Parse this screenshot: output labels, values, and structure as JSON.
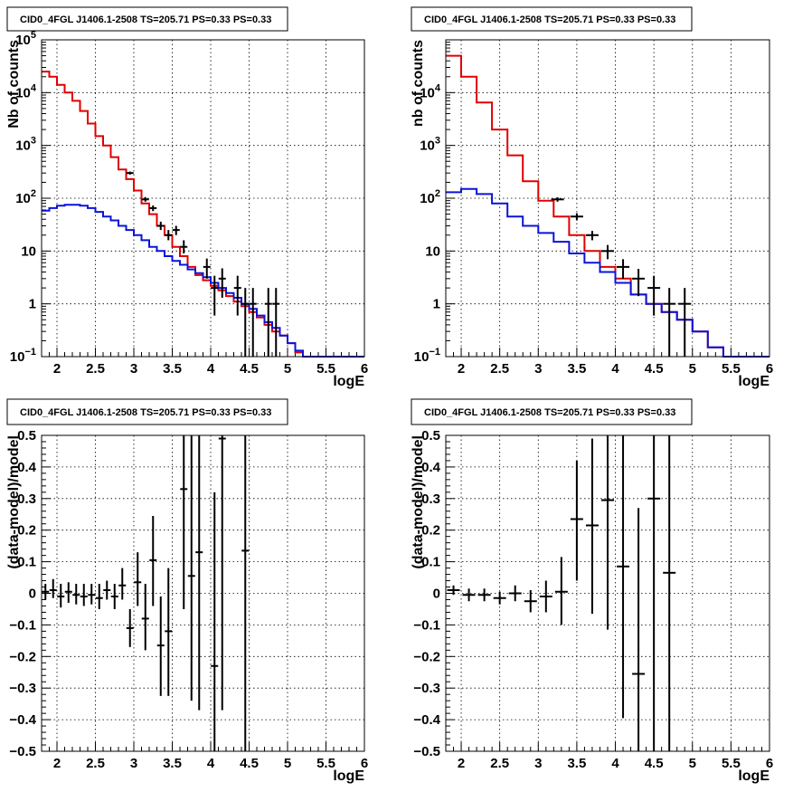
{
  "colors": {
    "data": "#000000",
    "total": "#e00000",
    "background": "#0a14d8",
    "grid": "#000000"
  },
  "chart_data": [
    {
      "type": "histogram",
      "title": "CID0_4FGL J1406.1-2508 TS=205.71 PS=0.33 PS=0.33",
      "xlabel": "logE",
      "ylabel": "Nb of counts",
      "xlim": [
        1.8,
        6.0
      ],
      "ylim": [
        0.1,
        100000
      ],
      "yscale": "log",
      "grid": true,
      "xticks": [
        "2",
        "2.5",
        "3",
        "3.5",
        "4",
        "4.5",
        "5",
        "5.5",
        "6"
      ],
      "yticks": [
        {
          "v": 0.1,
          "base": "10",
          "exp": "−1"
        },
        {
          "v": 1,
          "label": "1"
        },
        {
          "v": 10,
          "label": "10"
        },
        {
          "v": 100,
          "base": "10",
          "exp": "2"
        },
        {
          "v": 1000,
          "base": "10",
          "exp": "3"
        },
        {
          "v": 10000,
          "base": "10",
          "exp": "4"
        },
        {
          "v": 100000,
          "base": "10",
          "exp": "5"
        }
      ],
      "bin_edges": [
        1.8,
        1.9,
        2.0,
        2.1,
        2.2,
        2.3,
        2.4,
        2.5,
        2.6,
        2.7,
        2.8,
        2.9,
        3.0,
        3.1,
        3.2,
        3.3,
        3.4,
        3.5,
        3.6,
        3.7,
        3.8,
        3.9,
        4.0,
        4.1,
        4.2,
        4.3,
        4.4,
        4.5,
        4.6,
        4.7,
        4.8,
        4.9,
        5.0,
        5.1,
        5.2,
        5.3,
        5.4,
        5.5,
        5.6,
        5.7,
        5.8,
        5.9,
        6.0
      ],
      "series": [
        {
          "role": "total",
          "values": [
            25000,
            20000,
            14000,
            10000,
            7000,
            4500,
            2600,
            1500,
            1000,
            600,
            350,
            230,
            140,
            80,
            50,
            30,
            20,
            12,
            8,
            5,
            3.5,
            2.8,
            2.2,
            1.8,
            1.4,
            1.1,
            0.9,
            0.7,
            0.55,
            0.4,
            0.3,
            0.25,
            0.18,
            0.12,
            0.08,
            0.1,
            0.1,
            0.1,
            0.1,
            0.1,
            0.1,
            0.1
          ]
        },
        {
          "role": "background",
          "values": [
            58,
            65,
            72,
            75,
            75,
            72,
            65,
            55,
            45,
            38,
            30,
            25,
            20,
            16,
            12,
            10,
            8,
            6.5,
            5.5,
            4.5,
            3.8,
            3.2,
            2.5,
            2.0,
            1.6,
            1.3,
            1.0,
            0.8,
            0.6,
            0.45,
            0.35,
            0.25,
            0.18,
            0.13,
            0.1,
            0.1,
            0.1,
            0.1,
            0.1,
            0.1,
            0.1,
            0.1
          ]
        }
      ],
      "points": [
        {
          "x": 2.95,
          "y": 300,
          "lo": 280,
          "hi": 320
        },
        {
          "x": 3.15,
          "y": 95,
          "lo": 86,
          "hi": 105
        },
        {
          "x": 3.25,
          "y": 65,
          "lo": 57,
          "hi": 73
        },
        {
          "x": 3.35,
          "y": 30,
          "lo": 25,
          "hi": 36
        },
        {
          "x": 3.45,
          "y": 20,
          "lo": 16,
          "hi": 25
        },
        {
          "x": 3.55,
          "y": 25,
          "lo": 20,
          "hi": 30
        },
        {
          "x": 3.65,
          "y": 12,
          "lo": 9,
          "hi": 16
        },
        {
          "x": 3.95,
          "y": 5,
          "lo": 3,
          "hi": 7.2
        },
        {
          "x": 4.05,
          "y": 2,
          "lo": 0.6,
          "hi": 3.4
        },
        {
          "x": 4.15,
          "y": 3,
          "lo": 1.3,
          "hi": 4.7
        },
        {
          "x": 4.35,
          "y": 2,
          "lo": 0.6,
          "hi": 3.4
        },
        {
          "x": 4.45,
          "y": 1,
          "lo": 0.1,
          "hi": 2.0
        },
        {
          "x": 4.55,
          "y": 1,
          "lo": 0.1,
          "hi": 2.0
        },
        {
          "x": 4.75,
          "y": 1,
          "lo": 0.1,
          "hi": 2.0
        },
        {
          "x": 4.85,
          "y": 1,
          "lo": 0.1,
          "hi": 2.0
        }
      ]
    },
    {
      "type": "histogram",
      "title": "CID0_4FGL J1406.1-2508 TS=205.71 PS=0.33 PS=0.33",
      "xlabel": "logE",
      "ylabel": "nb of counts",
      "xlim": [
        1.8,
        6.0
      ],
      "ylim": [
        0.1,
        100000
      ],
      "yscale": "log",
      "grid": true,
      "xticks": [
        "2",
        "2.5",
        "3",
        "3.5",
        "4",
        "4.5",
        "5",
        "5.5",
        "6"
      ],
      "yticks": [
        {
          "v": 0.1,
          "base": "10",
          "exp": "−1"
        },
        {
          "v": 1,
          "label": "1"
        },
        {
          "v": 10,
          "label": "10"
        },
        {
          "v": 100,
          "base": "10",
          "exp": "2"
        },
        {
          "v": 1000,
          "base": "10",
          "exp": "3"
        },
        {
          "v": 10000,
          "base": "10",
          "exp": "4"
        }
      ],
      "bin_edges": [
        1.8,
        2.0,
        2.2,
        2.4,
        2.6,
        2.8,
        3.0,
        3.2,
        3.4,
        3.6,
        3.8,
        4.0,
        4.2,
        4.4,
        4.6,
        4.8,
        5.0,
        5.2,
        5.4,
        5.6,
        5.8,
        6.0
      ],
      "series": [
        {
          "role": "total",
          "values": [
            50000,
            20000,
            6500,
            2000,
            650,
            210,
            90,
            45,
            20,
            10,
            5,
            3,
            1.5,
            1.0,
            0.7,
            0.5,
            0.3,
            0.15,
            0.1,
            0.1,
            0.1
          ]
        },
        {
          "role": "background",
          "values": [
            130,
            150,
            120,
            80,
            45,
            30,
            22,
            15,
            9,
            6,
            4,
            2.5,
            1.5,
            1.0,
            0.7,
            0.5,
            0.3,
            0.15,
            0.1,
            0.1,
            0.1
          ]
        }
      ],
      "points": [
        {
          "x": 3.25,
          "y": 95,
          "lo": 86,
          "hi": 104
        },
        {
          "x": 3.5,
          "y": 45,
          "lo": 38,
          "hi": 52
        },
        {
          "x": 3.7,
          "y": 20,
          "lo": 16,
          "hi": 24
        },
        {
          "x": 3.9,
          "y": 10,
          "lo": 7,
          "hi": 13
        },
        {
          "x": 4.1,
          "y": 5,
          "lo": 3,
          "hi": 7
        },
        {
          "x": 4.3,
          "y": 3,
          "lo": 1.4,
          "hi": 4.6
        },
        {
          "x": 4.5,
          "y": 2,
          "lo": 0.6,
          "hi": 3.4
        },
        {
          "x": 4.7,
          "y": 1,
          "lo": 0.1,
          "hi": 2.0
        },
        {
          "x": 4.9,
          "y": 1,
          "lo": 0.1,
          "hi": 2.0
        }
      ]
    },
    {
      "type": "scatter",
      "title": "CID0_4FGL J1406.1-2508 TS=205.71 PS=0.33 PS=0.33",
      "xlabel": "logE",
      "ylabel": "(data-model)/model",
      "xlim": [
        1.8,
        6.0
      ],
      "ylim": [
        -0.5,
        0.5
      ],
      "grid": true,
      "xticks": [
        "2",
        "2.5",
        "3",
        "3.5",
        "4",
        "4.5",
        "5",
        "5.5",
        "6"
      ],
      "yticks": [
        "−0.5",
        "−0.4",
        "−0.3",
        "−0.2",
        "−0.1",
        "0",
        "0.1",
        "0.2",
        "0.3",
        "0.4",
        "0.5"
      ],
      "points": [
        {
          "x": 1.85,
          "y": 0.005,
          "lo": -0.02,
          "hi": 0.03
        },
        {
          "x": 1.95,
          "y": 0.01,
          "lo": -0.015,
          "hi": 0.045
        },
        {
          "x": 2.05,
          "y": -0.01,
          "lo": -0.045,
          "hi": 0.03
        },
        {
          "x": 2.15,
          "y": 0.005,
          "lo": -0.03,
          "hi": 0.035
        },
        {
          "x": 2.25,
          "y": -0.005,
          "lo": -0.035,
          "hi": 0.03
        },
        {
          "x": 2.35,
          "y": -0.01,
          "lo": -0.04,
          "hi": 0.03
        },
        {
          "x": 2.45,
          "y": -0.005,
          "lo": -0.035,
          "hi": 0.03
        },
        {
          "x": 2.55,
          "y": -0.015,
          "lo": -0.05,
          "hi": 0.03
        },
        {
          "x": 2.65,
          "y": 0.01,
          "lo": -0.02,
          "hi": 0.04
        },
        {
          "x": 2.75,
          "y": -0.01,
          "lo": -0.05,
          "hi": 0.03
        },
        {
          "x": 2.85,
          "y": 0.025,
          "lo": -0.02,
          "hi": 0.08
        },
        {
          "x": 2.95,
          "y": -0.11,
          "lo": -0.17,
          "hi": -0.05
        },
        {
          "x": 3.05,
          "y": 0.035,
          "lo": -0.04,
          "hi": 0.13
        },
        {
          "x": 3.15,
          "y": -0.08,
          "lo": -0.18,
          "hi": 0.03
        },
        {
          "x": 3.25,
          "y": 0.105,
          "lo": -0.04,
          "hi": 0.245
        },
        {
          "x": 3.35,
          "y": -0.165,
          "lo": -0.325,
          "hi": -0.01
        },
        {
          "x": 3.45,
          "y": -0.12,
          "lo": -0.325,
          "hi": 0.08
        },
        {
          "x": 3.65,
          "y": 0.33,
          "lo": -0.05,
          "hi": 0.5
        },
        {
          "x": 3.75,
          "y": 0.055,
          "lo": -0.34,
          "hi": 0.5
        },
        {
          "x": 3.85,
          "y": 0.13,
          "lo": -0.37,
          "hi": 0.5
        },
        {
          "x": 4.05,
          "y": -0.23,
          "lo": -0.5,
          "hi": 0.32
        },
        {
          "x": 4.15,
          "y": 0.49,
          "lo": -0.37,
          "hi": 0.5
        },
        {
          "x": 4.45,
          "y": 0.135,
          "lo": -0.5,
          "hi": 0.5
        }
      ]
    },
    {
      "type": "scatter",
      "title": "CID0_4FGL J1406.1-2508 TS=205.71 PS=0.33 PS=0.33",
      "xlabel": "logE",
      "ylabel": "(data-model)/model",
      "xlim": [
        1.8,
        6.0
      ],
      "ylim": [
        -0.5,
        0.5
      ],
      "grid": true,
      "xticks": [
        "2",
        "2.5",
        "3",
        "3.5",
        "4",
        "4.5",
        "5",
        "5.5",
        "6"
      ],
      "yticks": [
        "−0.5",
        "−0.4",
        "−0.3",
        "−0.2",
        "−0.1",
        "0",
        "0.1",
        "0.2",
        "0.3",
        "0.4",
        "0.5"
      ],
      "points": [
        {
          "x": 1.9,
          "y": 0.01,
          "lo": -0.005,
          "hi": 0.025
        },
        {
          "x": 2.1,
          "y": -0.005,
          "lo": -0.025,
          "hi": 0.015
        },
        {
          "x": 2.3,
          "y": -0.005,
          "lo": -0.025,
          "hi": 0.015
        },
        {
          "x": 2.5,
          "y": -0.015,
          "lo": -0.035,
          "hi": 0.005
        },
        {
          "x": 2.7,
          "y": 0.0,
          "lo": -0.025,
          "hi": 0.025
        },
        {
          "x": 2.9,
          "y": -0.025,
          "lo": -0.06,
          "hi": 0.01
        },
        {
          "x": 3.1,
          "y": -0.01,
          "lo": -0.06,
          "hi": 0.04
        },
        {
          "x": 3.3,
          "y": 0.005,
          "lo": -0.1,
          "hi": 0.115
        },
        {
          "x": 3.5,
          "y": 0.235,
          "lo": 0.04,
          "hi": 0.42
        },
        {
          "x": 3.7,
          "y": 0.215,
          "lo": -0.065,
          "hi": 0.49
        },
        {
          "x": 3.9,
          "y": 0.295,
          "lo": -0.115,
          "hi": 0.5
        },
        {
          "x": 4.1,
          "y": 0.085,
          "lo": -0.395,
          "hi": 0.5
        },
        {
          "x": 4.3,
          "y": -0.255,
          "lo": -0.5,
          "hi": 0.27
        },
        {
          "x": 4.5,
          "y": 0.3,
          "lo": -0.5,
          "hi": 0.5
        },
        {
          "x": 4.7,
          "y": 0.065,
          "lo": -0.5,
          "hi": 0.5
        }
      ]
    }
  ]
}
